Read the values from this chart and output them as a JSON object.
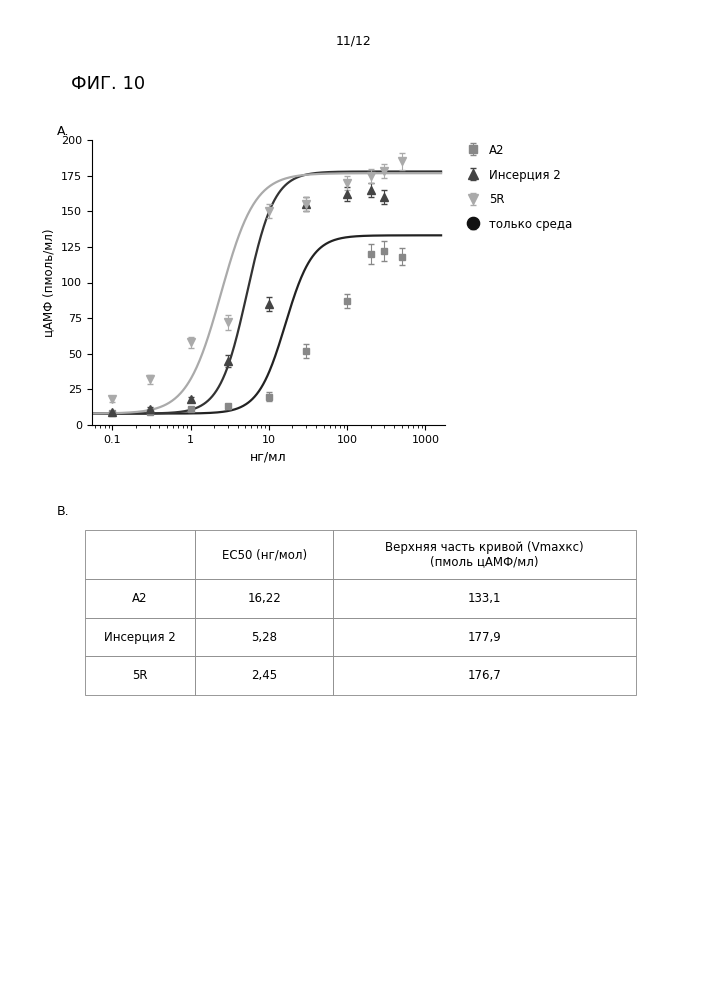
{
  "page_label": "11/12",
  "fig_label": "ФИГ. 10",
  "panel_a_label": "А.",
  "panel_b_label": "В.",
  "ylabel": "цАМФ (пмоль/мл)",
  "xlabel": "нг/мл",
  "ylim": [
    0,
    200
  ],
  "yticks": [
    0,
    25,
    50,
    75,
    100,
    125,
    150,
    175,
    200
  ],
  "xlog_ticks": [
    0.1,
    1,
    10,
    100,
    1000
  ],
  "xtick_labels": [
    "0.1",
    "1",
    "10",
    "100",
    "1000"
  ],
  "A2_color": "#888888",
  "ins2_color": "#444444",
  "fiveR_color": "#aaaaaa",
  "media_color": "#111111",
  "A2_EC50": 16.22,
  "A2_Vmax": 133.1,
  "A2_baseline": 8.0,
  "A2_hill": 2.5,
  "ins2_EC50": 5.28,
  "ins2_Vmax": 177.9,
  "ins2_baseline": 8.0,
  "ins2_hill": 2.5,
  "fiveR_EC50": 2.45,
  "fiveR_Vmax": 176.7,
  "fiveR_baseline": 8.0,
  "fiveR_hill": 2.0,
  "A2_x": [
    0.1,
    0.3,
    1.0,
    3.0,
    10.0,
    30.0,
    100.0,
    200.0,
    300.0,
    500.0
  ],
  "A2_y": [
    8.5,
    9.0,
    11.0,
    13.0,
    20.0,
    52.0,
    87.0,
    120.0,
    122.0,
    118.0
  ],
  "A2_yerr": [
    1.0,
    1.0,
    1.5,
    1.5,
    3.0,
    5.0,
    5.0,
    7.0,
    7.0,
    6.0
  ],
  "ins2_x": [
    0.1,
    0.3,
    1.0,
    3.0,
    10.0,
    30.0,
    100.0,
    200.0,
    300.0
  ],
  "ins2_y": [
    9.0,
    11.0,
    18.0,
    45.0,
    85.0,
    155.0,
    162.0,
    165.0,
    160.0
  ],
  "ins2_yerr": [
    1.0,
    1.5,
    2.0,
    4.0,
    5.0,
    5.0,
    5.0,
    5.0,
    5.0
  ],
  "fiveR_x": [
    0.1,
    0.3,
    1.0,
    3.0,
    10.0,
    30.0,
    100.0,
    200.0,
    300.0,
    500.0
  ],
  "fiveR_y": [
    18.0,
    32.0,
    58.0,
    72.0,
    150.0,
    155.0,
    170.0,
    175.0,
    178.0,
    185.0
  ],
  "fiveR_yerr": [
    2.0,
    3.0,
    4.0,
    5.0,
    5.0,
    5.0,
    5.0,
    5.0,
    5.0,
    6.0
  ],
  "media_x": [
    0.04
  ],
  "media_y": [
    8.0
  ],
  "media_yerr": [
    1.0
  ],
  "legend_labels": [
    "A2",
    "Инсерция 2",
    "5R",
    "только среда"
  ],
  "table_rows": [
    [
      "A2",
      "16,22",
      "133,1"
    ],
    [
      "Инсерция 2",
      "5,28",
      "177,9"
    ],
    [
      "5R",
      "2,45",
      "176,7"
    ]
  ],
  "table_col0_header": "",
  "table_col1_header": "EC50 (нг/мол)",
  "table_col2_header": "Верхняя часть кривой (Vmaxкс)\n(пмоль цАМФ/мл)"
}
